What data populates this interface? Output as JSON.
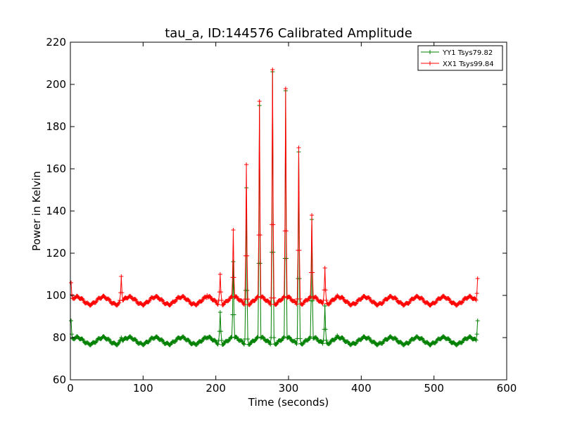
{
  "chart_data": {
    "type": "line",
    "title": "tau_a, ID:144576 Calibrated Amplitude",
    "xlabel": "Time (seconds)",
    "ylabel": "Power in Kelvin",
    "xlim": [
      0,
      600
    ],
    "ylim": [
      60,
      220
    ],
    "xticks": [
      0,
      100,
      200,
      300,
      400,
      500,
      600
    ],
    "yticks": [
      60,
      80,
      100,
      120,
      140,
      160,
      180,
      200,
      220
    ],
    "grid": false,
    "legend_position": "top-right",
    "series": [
      {
        "name": "YY1 Tsys79.82",
        "color": "#008000",
        "baseline": 78.5,
        "ripple": 1.6,
        "t_start": 1,
        "t_end": 560,
        "step": 1,
        "spikes": [
          {
            "t": 1,
            "value": 88
          },
          {
            "t": 70,
            "value": 80
          },
          {
            "t": 188,
            "value": 80
          },
          {
            "t": 206,
            "value": 92
          },
          {
            "t": 224,
            "value": 116
          },
          {
            "t": 242,
            "value": 151
          },
          {
            "t": 260,
            "value": 190
          },
          {
            "t": 278,
            "value": 206
          },
          {
            "t": 296,
            "value": 197
          },
          {
            "t": 314,
            "value": 168
          },
          {
            "t": 332,
            "value": 136
          },
          {
            "t": 350,
            "value": 95
          },
          {
            "t": 367,
            "value": 81
          },
          {
            "t": 560,
            "value": 88
          }
        ]
      },
      {
        "name": "XX1 Tsys99.84",
        "color": "#ff0000",
        "baseline": 97.5,
        "ripple": 1.8,
        "t_start": 1,
        "t_end": 560,
        "step": 1,
        "spikes": [
          {
            "t": 1,
            "value": 106
          },
          {
            "t": 70,
            "value": 109
          },
          {
            "t": 188,
            "value": 100
          },
          {
            "t": 206,
            "value": 110
          },
          {
            "t": 224,
            "value": 131
          },
          {
            "t": 242,
            "value": 162
          },
          {
            "t": 260,
            "value": 192
          },
          {
            "t": 278,
            "value": 207
          },
          {
            "t": 296,
            "value": 198
          },
          {
            "t": 314,
            "value": 170
          },
          {
            "t": 332,
            "value": 138
          },
          {
            "t": 350,
            "value": 113
          },
          {
            "t": 367,
            "value": 100
          },
          {
            "t": 560,
            "value": 108
          }
        ]
      }
    ]
  }
}
